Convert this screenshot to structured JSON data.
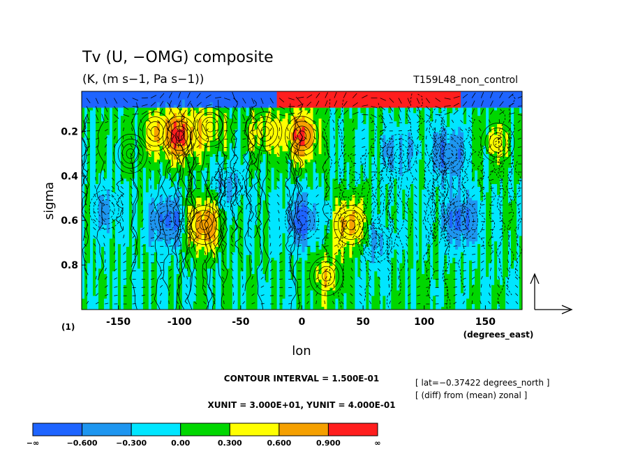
{
  "chart_data": {
    "type": "heatmap",
    "title": "Tv (U, −OMG) composite",
    "subtitle": "(K, (m s−1, Pa s−1))",
    "run_label": "T159L48_non_control",
    "xlabel": "lon",
    "ylabel": "sigma",
    "x_unit_label": "(degrees_east)",
    "panel_label": "(1)",
    "xlim": [
      -180,
      180
    ],
    "ylim": [
      0.02,
      1.0
    ],
    "x_ticks": [
      -150,
      -100,
      -50,
      0,
      50,
      100,
      150
    ],
    "y_ticks": [
      0.2,
      0.4,
      0.6,
      0.8
    ],
    "y_axis_reversed": true,
    "contour_interval_text": "CONTOUR INTERVAL = 1.500E-01",
    "unit_vector_text": "XUNIT = 3.000E+01, YUNIT = 4.000E-01",
    "annotations": [
      "[ lat=−0.37422 degrees_north ]",
      "[ (diff) from (mean) zonal ]"
    ],
    "colorbar": {
      "levels": [
        "−∞",
        "−0.600",
        "−0.300",
        "0.00",
        "0.300",
        "0.600",
        "0.900",
        "∞"
      ],
      "colors": [
        "#1e64ff",
        "#1e96f0",
        "#00e6ff",
        "#00d700",
        "#ffff00",
        "#f5a000",
        "#ff1e1e"
      ]
    },
    "features": [
      {
        "lon": -80,
        "sigma": 0.62,
        "value": 0.9
      },
      {
        "lon": -100,
        "sigma": 0.22,
        "value": 0.9
      },
      {
        "lon": -75,
        "sigma": 0.18,
        "value": 0.45
      },
      {
        "lon": 0,
        "sigma": 0.22,
        "value": 0.9
      },
      {
        "lon": 40,
        "sigma": 0.62,
        "value": 0.75
      },
      {
        "lon": -110,
        "sigma": 0.6,
        "value": -0.7
      },
      {
        "lon": 0,
        "sigma": 0.6,
        "value": -0.7
      },
      {
        "lon": 130,
        "sigma": 0.6,
        "value": -0.7
      },
      {
        "lon": 120,
        "sigma": 0.3,
        "value": -0.65
      },
      {
        "lon": 80,
        "sigma": 0.3,
        "value": -0.4
      },
      {
        "lon": -160,
        "sigma": 0.55,
        "value": -0.35
      },
      {
        "lon": -60,
        "sigma": 0.45,
        "value": -0.35
      },
      {
        "lon": 60,
        "sigma": 0.7,
        "value": -0.35
      },
      {
        "lon": -120,
        "sigma": 0.2,
        "value": 0.4
      },
      {
        "lon": -30,
        "sigma": 0.2,
        "value": 0.45
      },
      {
        "lon": 160,
        "sigma": 0.25,
        "value": 0.35
      },
      {
        "lon": 20,
        "sigma": 0.85,
        "value": 0.45
      },
      {
        "lon": -140,
        "sigma": 0.3,
        "value": 0.1
      }
    ]
  }
}
